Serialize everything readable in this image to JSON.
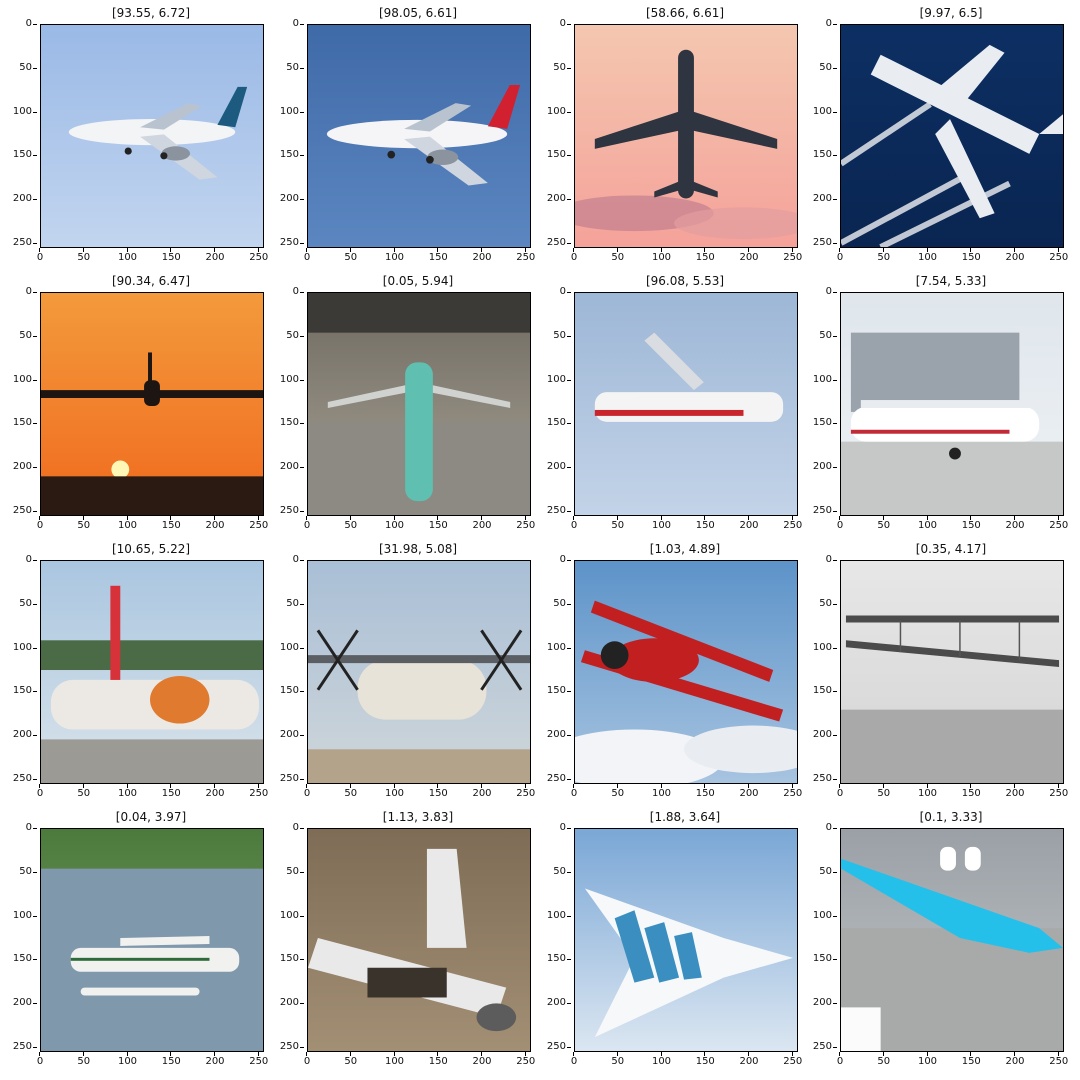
{
  "axis": {
    "y_ticks": [
      "0",
      "50",
      "100",
      "150",
      "200",
      "250"
    ],
    "x_ticks": [
      "0",
      "50",
      "100",
      "150",
      "200",
      "250"
    ]
  },
  "panels": [
    {
      "title": "[93.55, 6.72]",
      "scene": "boeing-737-max-landing-blue-sky"
    },
    {
      "title": "[98.05, 6.61]",
      "scene": "air-france-a380-flight-blue-sky"
    },
    {
      "title": "[58.66, 6.61]",
      "scene": "jet-silhouette-sunset-clouds"
    },
    {
      "title": "[9.97, 6.5]",
      "scene": "widebody-jet-contrails-dark-blue"
    },
    {
      "title": "[90.34, 6.47]",
      "scene": "jet-landing-orange-sunset"
    },
    {
      "title": "[0.05, 5.94]",
      "scene": "aircraft-factory-assembly-hall"
    },
    {
      "title": "[96.08, 5.53]",
      "scene": "cessna-caravan-electric-flight"
    },
    {
      "title": "[7.54, 5.33]",
      "scene": "nasa-x57-electric-plane-hangar"
    },
    {
      "title": "[10.65, 5.22]",
      "scene": "tiger-livery-jumbo-jet-parked"
    },
    {
      "title": "[31.98, 5.08]",
      "scene": "an-22-turboprop-landing"
    },
    {
      "title": "[1.03, 4.89]",
      "scene": "red-biplane-above-clouds"
    },
    {
      "title": "[0.35, 4.17]",
      "scene": "wright-flyer-black-and-white"
    },
    {
      "title": "[0.04, 3.97]",
      "scene": "floatplane-lake-forest"
    },
    {
      "title": "[1.13, 3.83]",
      "scene": "crashed-airliner-wreckage"
    },
    {
      "title": "[1.88, 3.64]",
      "scene": "airbus-blended-wing-concept"
    },
    {
      "title": "[0.1, 3.33]",
      "scene": "klm-flying-v-concept-apron"
    }
  ],
  "colors": {
    "frame": "#000000",
    "sky_blue": "#8fb3dd",
    "deep_blue": "#0d2b5a",
    "sunset_orange": "#f07a2a",
    "cloud_pink": "#f2b8a4"
  }
}
